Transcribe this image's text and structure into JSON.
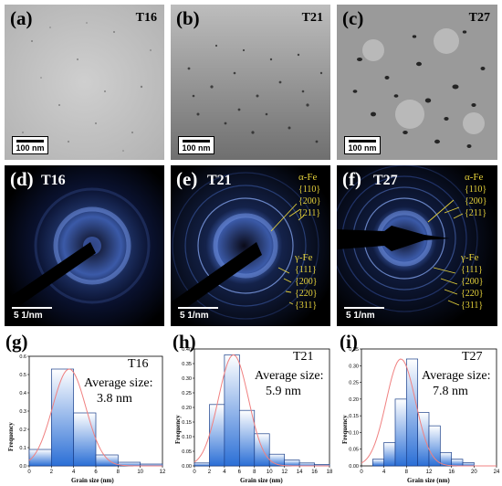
{
  "tem_panels": [
    {
      "label": "(a)",
      "sample": "T16",
      "scale": "100 nm"
    },
    {
      "label": "(b)",
      "sample": "T21",
      "scale": "100 nm"
    },
    {
      "label": "(c)",
      "sample": "T27",
      "scale": "100 nm"
    }
  ],
  "saed_panels": [
    {
      "label": "(d)",
      "sample": "T16",
      "scale": "5 1/nm"
    },
    {
      "label": "(e)",
      "sample": "T21",
      "scale": "5 1/nm"
    },
    {
      "label": "(f)",
      "sample": "T27",
      "scale": "5 1/nm"
    }
  ],
  "phases": {
    "alpha": "α-Fe",
    "alpha_hkl": [
      "{110}",
      "{200}",
      "{211}"
    ],
    "gamma": "γ-Fe",
    "gamma_hkl": [
      "{111}",
      "{200}",
      "{220}",
      "{311}"
    ]
  },
  "colors": {
    "bar_top": "#ffffff",
    "bar_bottom": "#2b6fd6",
    "fit": "#f08080",
    "phase_text": "#e6d23a"
  },
  "chart_data": [
    {
      "type": "bar",
      "label": "(g)",
      "sample": "T16",
      "annotation_line1": "Average size:",
      "annotation_line2": "3.8 nm",
      "xlabel": "Grain size (nm)",
      "ylabel": "Frequency",
      "xlim": [
        0,
        12
      ],
      "ylim": [
        0,
        0.6
      ],
      "xticks": [
        0,
        2,
        4,
        6,
        8,
        10,
        12
      ],
      "yticks": [
        0.0,
        0.1,
        0.2,
        0.3,
        0.4,
        0.5,
        0.6
      ],
      "bin_width": 2,
      "bin_starts": [
        0,
        2,
        4,
        6,
        8,
        10
      ],
      "values": [
        0.09,
        0.53,
        0.29,
        0.06,
        0.02,
        0.01
      ],
      "fit_mean": 3.6,
      "fit_sigma": 1.5
    },
    {
      "type": "bar",
      "label": "(h)",
      "sample": "T21",
      "annotation_line1": "Average size:",
      "annotation_line2": "5.9 nm",
      "xlabel": "Grain size (nm)",
      "ylabel": "Frequency",
      "xlim": [
        0,
        18
      ],
      "ylim": [
        0,
        0.4
      ],
      "xticks": [
        0,
        2,
        4,
        6,
        8,
        10,
        12,
        14,
        16,
        18
      ],
      "yticks": [
        0.0,
        0.05,
        0.1,
        0.15,
        0.2,
        0.25,
        0.3,
        0.35,
        0.4
      ],
      "bin_width": 2,
      "bin_starts": [
        0,
        2,
        4,
        6,
        8,
        10,
        12,
        14,
        16
      ],
      "values": [
        0.01,
        0.21,
        0.38,
        0.19,
        0.11,
        0.04,
        0.02,
        0.01,
        0.005
      ],
      "fit_mean": 5.2,
      "fit_sigma": 2.0
    },
    {
      "type": "bar",
      "label": "(i)",
      "sample": "T27",
      "annotation_line1": "Average size:",
      "annotation_line2": "7.8 nm",
      "xlabel": "Grain size (nm)",
      "ylabel": "Frequency",
      "xlim": [
        0,
        24
      ],
      "ylim": [
        0,
        0.35
      ],
      "xticks": [
        0,
        4,
        8,
        12,
        16,
        20,
        24
      ],
      "yticks": [
        0.0,
        0.05,
        0.1,
        0.15,
        0.2,
        0.25,
        0.3,
        0.35
      ],
      "bin_width": 2,
      "bin_starts": [
        2,
        4,
        6,
        8,
        10,
        12,
        14,
        16,
        18
      ],
      "values": [
        0.02,
        0.07,
        0.2,
        0.32,
        0.16,
        0.12,
        0.04,
        0.02,
        0.01
      ],
      "fit_mean": 7.0,
      "fit_sigma": 2.6
    }
  ]
}
